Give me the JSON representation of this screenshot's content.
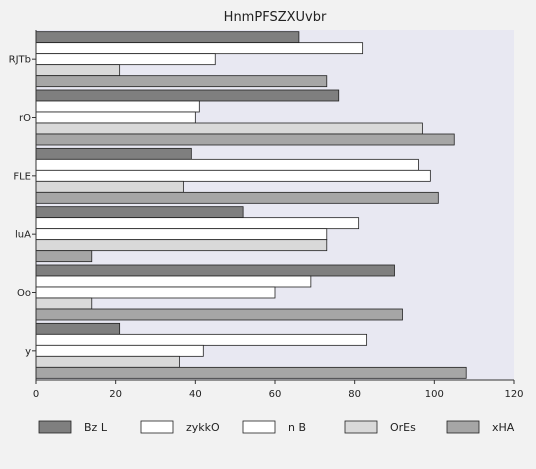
{
  "chart_data": {
    "type": "bar",
    "orientation": "horizontal",
    "title": "HnmPFSZXUvbr",
    "xlabel": "",
    "ylabel": "",
    "xlim": [
      0,
      120
    ],
    "x_ticks": [
      0,
      20,
      40,
      60,
      80,
      100,
      120
    ],
    "categories": [
      "RJTb",
      "rO",
      "FLE",
      "luA",
      "Oo",
      "y"
    ],
    "series": [
      {
        "name": "Bz L",
        "color": "#7f7f7f",
        "values": [
          66,
          76,
          39,
          52,
          90,
          21
        ]
      },
      {
        "name": "zykkO",
        "color": "#ffffff",
        "values": [
          82,
          41,
          96,
          81,
          69,
          83
        ]
      },
      {
        "name": "n B",
        "color": "#ffffff",
        "values": [
          45,
          40,
          99,
          73,
          60,
          42
        ]
      },
      {
        "name": "OrEs",
        "color": "#d9d9d9",
        "values": [
          21,
          97,
          37,
          73,
          14,
          36
        ]
      },
      {
        "name": "xHA",
        "color": "#a6a6a6",
        "values": [
          73,
          105,
          101,
          14,
          92,
          108
        ]
      }
    ],
    "grid": false,
    "legend_position": "bottom"
  }
}
